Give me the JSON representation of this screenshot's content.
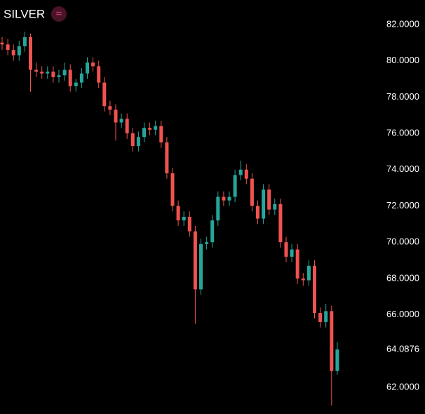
{
  "chart_data": {
    "type": "candlestick",
    "title": "SILVER",
    "icon": "≈",
    "up_color": "#26a69a",
    "down_color": "#ef5350",
    "ylim": [
      60.53,
      83.35
    ],
    "yticks": [
      {
        "value": 82,
        "label": "82.0000"
      },
      {
        "value": 80,
        "label": "80.0000"
      },
      {
        "value": 78,
        "label": "78.0000"
      },
      {
        "value": 76,
        "label": "76.0000"
      },
      {
        "value": 74,
        "label": "74.0000"
      },
      {
        "value": 72,
        "label": "72.0000"
      },
      {
        "value": 70,
        "label": "70.0000"
      },
      {
        "value": 68,
        "label": "68.0000"
      },
      {
        "value": 66,
        "label": "66.0000"
      },
      {
        "value": 62,
        "label": "62.0000"
      }
    ],
    "last_price": 64.0876,
    "open": [
      81.0,
      80.9,
      80.6,
      80.3,
      80.8,
      81.3,
      79.5,
      79.4,
      79.3,
      79.4,
      79.1,
      79.2,
      79.5,
      78.6,
      78.8,
      79.3,
      79.9,
      79.7,
      78.8,
      77.5,
      77.3,
      76.6,
      76.8,
      76.0,
      75.3,
      75.8,
      76.3,
      76.2,
      76.4,
      75.5,
      73.8,
      72.0,
      71.2,
      71.4,
      70.6,
      67.4,
      69.9,
      70.0,
      71.2,
      72.5,
      72.3,
      72.5,
      73.7,
      74.0,
      73.5,
      72.0,
      71.3,
      72.9,
      71.8,
      72.1,
      70.0,
      69.2,
      69.6,
      68.0,
      67.9,
      68.7,
      66.1,
      65.6,
      66.2,
      62.9
    ],
    "high": [
      81.3,
      81.2,
      80.9,
      81.1,
      81.6,
      81.5,
      79.9,
      79.7,
      79.7,
      79.7,
      79.5,
      79.9,
      79.8,
      79.0,
      79.6,
      80.2,
      80.2,
      80.0,
      79.1,
      77.8,
      77.6,
      77.1,
      77.1,
      76.3,
      76.1,
      76.6,
      76.6,
      76.7,
      76.7,
      75.8,
      74.1,
      72.3,
      71.7,
      71.7,
      70.9,
      70.2,
      70.3,
      71.5,
      72.8,
      72.8,
      72.8,
      74.0,
      74.5,
      74.3,
      73.8,
      72.3,
      73.2,
      73.2,
      72.4,
      72.4,
      70.3,
      69.9,
      69.9,
      68.3,
      69.0,
      69.0,
      66.4,
      66.6,
      66.5,
      64.5
    ],
    "low": [
      80.6,
      80.3,
      80.0,
      80.0,
      80.5,
      78.3,
      79.1,
      79.0,
      79.0,
      78.8,
      78.8,
      78.9,
      78.3,
      78.3,
      78.5,
      79.0,
      79.4,
      78.5,
      77.2,
      77.0,
      75.6,
      76.3,
      75.7,
      75.0,
      75.0,
      75.5,
      75.9,
      75.9,
      75.2,
      73.5,
      71.7,
      70.9,
      70.9,
      70.3,
      65.5,
      67.1,
      69.6,
      69.7,
      70.9,
      72.0,
      72.0,
      72.2,
      73.4,
      73.2,
      71.7,
      71.0,
      71.0,
      71.5,
      71.5,
      69.7,
      68.9,
      68.9,
      67.7,
      67.6,
      67.6,
      65.8,
      65.3,
      65.3,
      61.0,
      62.7
    ],
    "close": [
      80.9,
      80.6,
      80.3,
      80.8,
      81.3,
      79.5,
      79.4,
      79.3,
      79.4,
      79.1,
      79.2,
      79.5,
      78.6,
      78.8,
      79.3,
      79.9,
      79.7,
      78.8,
      77.5,
      77.3,
      76.6,
      76.8,
      76.0,
      75.3,
      75.8,
      76.3,
      76.2,
      76.4,
      75.5,
      73.8,
      72.0,
      71.2,
      71.4,
      70.6,
      67.4,
      69.9,
      70.0,
      71.2,
      72.5,
      72.3,
      72.5,
      73.7,
      74.0,
      73.5,
      72.0,
      71.3,
      72.9,
      71.8,
      72.1,
      70.0,
      69.2,
      69.6,
      68.0,
      67.9,
      68.7,
      66.1,
      65.6,
      66.2,
      62.9,
      64.0876
    ]
  }
}
